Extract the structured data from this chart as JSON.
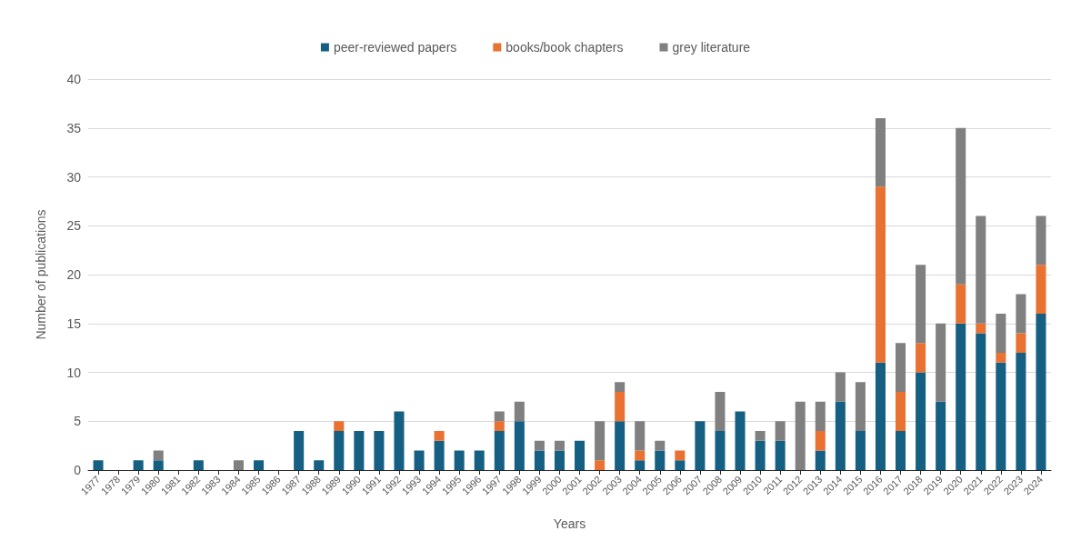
{
  "chart_data": {
    "type": "bar",
    "stacked": true,
    "xlabel": "Years",
    "ylabel": "Number of publications",
    "categories": [
      "1977",
      "1978",
      "1979",
      "1980",
      "1981",
      "1982",
      "1983",
      "1984",
      "1985",
      "1986",
      "1987",
      "1988",
      "1989",
      "1990",
      "1991",
      "1992",
      "1993",
      "1994",
      "1995",
      "1996",
      "1997",
      "1998",
      "1999",
      "2000",
      "2001",
      "2002",
      "2003",
      "2004",
      "2005",
      "2006",
      "2007",
      "2008",
      "2009",
      "2010",
      "2011",
      "2012",
      "2013",
      "2014",
      "2015",
      "2016",
      "2017",
      "2018",
      "2019",
      "2020",
      "2021",
      "2022",
      "2023",
      "2024"
    ],
    "series": [
      {
        "name": "peer-reviewed papers",
        "color": "#156082",
        "values": [
          1,
          0,
          1,
          1,
          0,
          1,
          0,
          0,
          1,
          0,
          4,
          1,
          4,
          4,
          4,
          6,
          2,
          3,
          2,
          2,
          4,
          5,
          2,
          2,
          3,
          0,
          5,
          1,
          2,
          1,
          5,
          4,
          6,
          3,
          3,
          0,
          2,
          7,
          4,
          11,
          4,
          10,
          7,
          15,
          14,
          11,
          12,
          16
        ]
      },
      {
        "name": "books/book chapters",
        "color": "#e97132",
        "values": [
          0,
          0,
          0,
          0,
          0,
          0,
          0,
          0,
          0,
          0,
          0,
          0,
          1,
          0,
          0,
          0,
          0,
          1,
          0,
          0,
          1,
          0,
          0,
          0,
          0,
          1,
          3,
          1,
          0,
          1,
          0,
          0,
          0,
          0,
          0,
          0,
          2,
          0,
          0,
          18,
          4,
          3,
          0,
          4,
          1,
          1,
          2,
          5
        ]
      },
      {
        "name": "grey literature",
        "color": "#808080",
        "values": [
          0,
          0,
          0,
          1,
          0,
          0,
          0,
          1,
          0,
          0,
          0,
          0,
          0,
          0,
          0,
          0,
          0,
          0,
          0,
          0,
          1,
          2,
          1,
          1,
          0,
          4,
          1,
          3,
          1,
          0,
          0,
          4,
          0,
          1,
          2,
          7,
          3,
          3,
          5,
          7,
          5,
          8,
          8,
          16,
          11,
          4,
          4,
          5
        ]
      }
    ],
    "ylim": [
      0,
      40
    ],
    "yticks": [
      0,
      5,
      10,
      15,
      20,
      25,
      30,
      35,
      40
    ],
    "grid": "y",
    "legend": "top"
  }
}
